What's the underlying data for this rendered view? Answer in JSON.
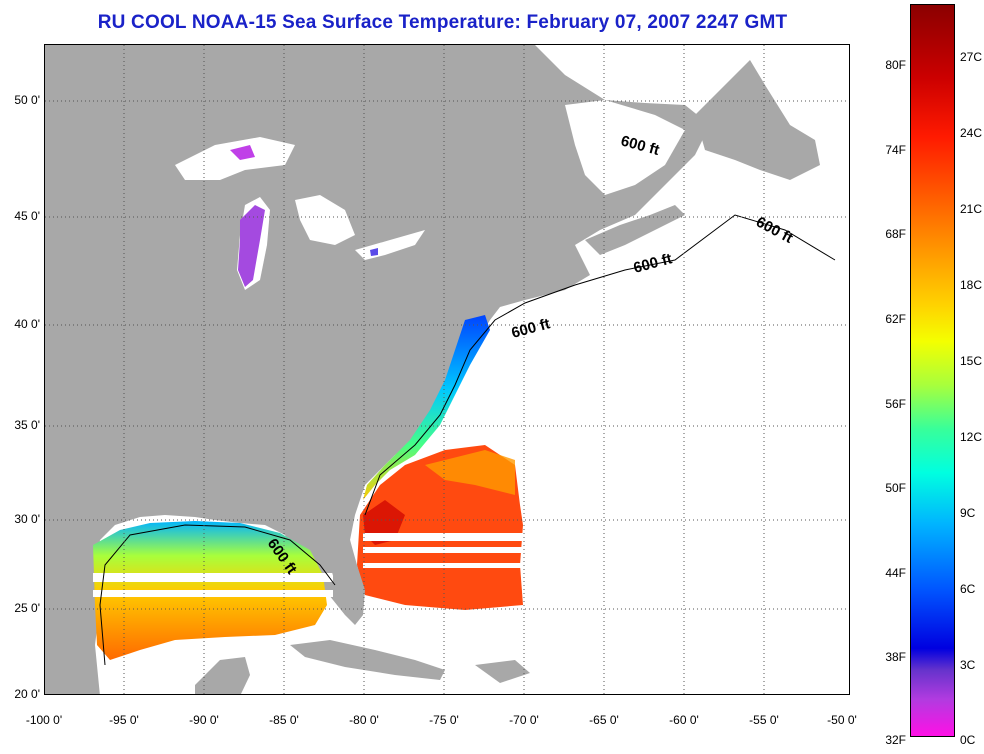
{
  "title": "RU COOL  NOAA-15  Sea Surface Temperature:  February 07, 2007 2247 GMT",
  "map": {
    "lat_labels": [
      "50 0'",
      "45 0'",
      "40 0'",
      "35 0'",
      "30 0'",
      "25 0'",
      "20 0'"
    ],
    "lon_labels": [
      "-100 0'",
      "-95 0'",
      "-90 0'",
      "-85 0'",
      "-80 0'",
      "-75 0'",
      "-70 0'",
      "-65 0'",
      "-60 0'",
      "-55 0'",
      "-50 0'"
    ],
    "contour_labels": [
      "600 ft",
      "600 ft",
      "600 ft",
      "600 ft",
      "600 ft"
    ],
    "colors": {
      "land": "#a8a8a8",
      "ocean_no_data": "#ffffff",
      "grid": "#555555",
      "title": "#1a22c8"
    }
  },
  "colorbar": {
    "fahrenheit_labels": [
      "80F",
      "74F",
      "68F",
      "62F",
      "56F",
      "50F",
      "44F",
      "38F",
      "32F"
    ],
    "celsius_labels": [
      "27C",
      "24C",
      "21C",
      "18C",
      "15C",
      "12C",
      "9C",
      "6C",
      "3C",
      "0C"
    ]
  }
}
